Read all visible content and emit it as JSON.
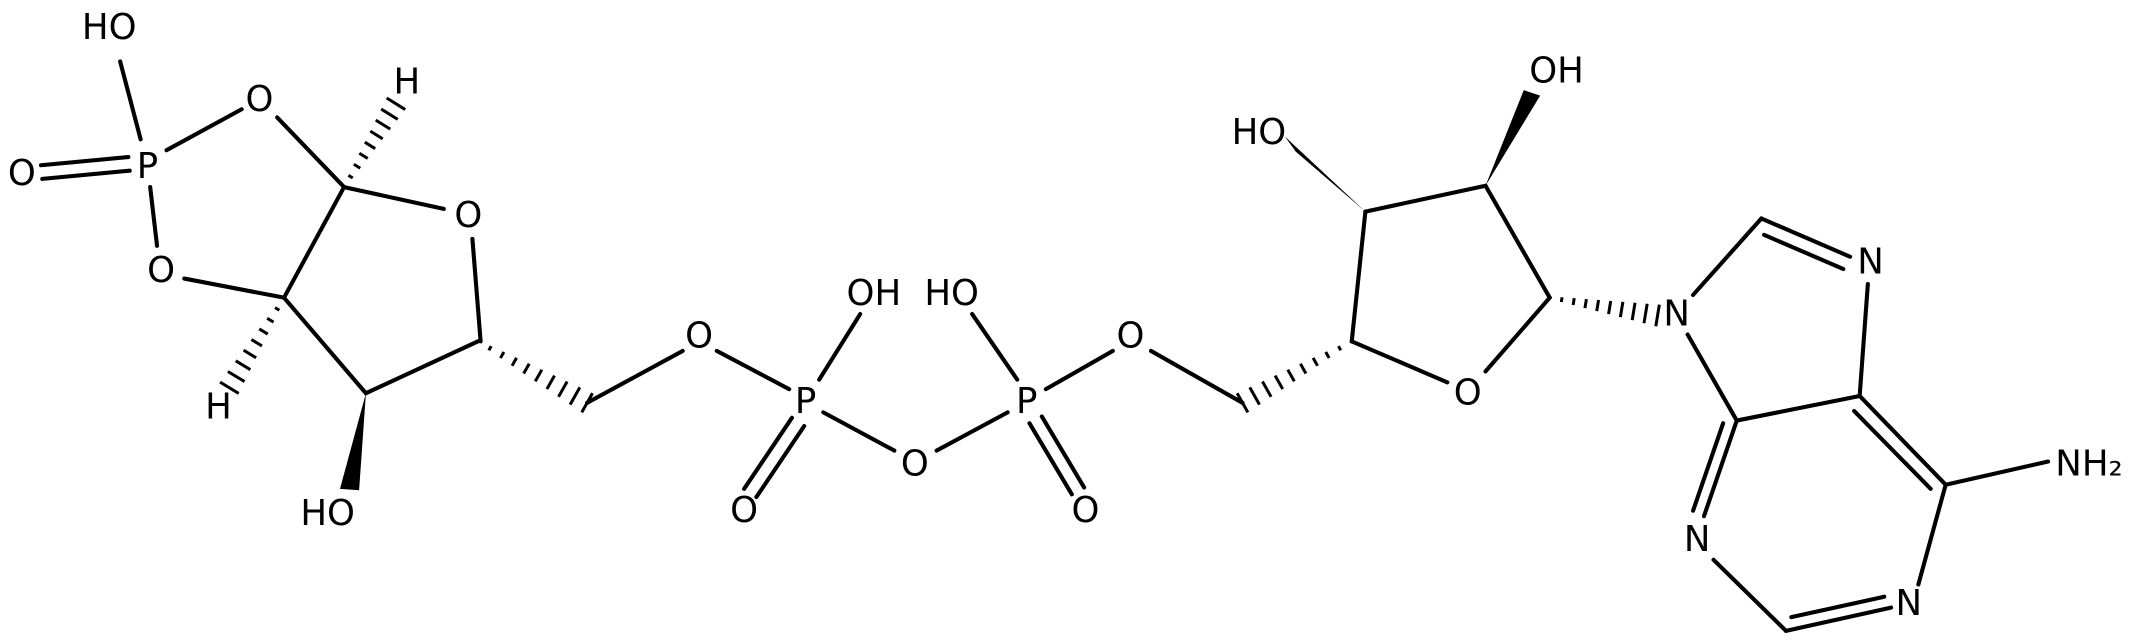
{
  "atoms": [
    "HO",
    "P",
    "O",
    "O",
    "O",
    "H",
    "H",
    "O",
    "HO",
    "O",
    "OH",
    "P",
    "O",
    "O",
    "HO",
    "P",
    "O",
    "O",
    "O",
    "HO",
    "OH",
    "N",
    "N",
    "N",
    "N",
    "NH₂"
  ]
}
